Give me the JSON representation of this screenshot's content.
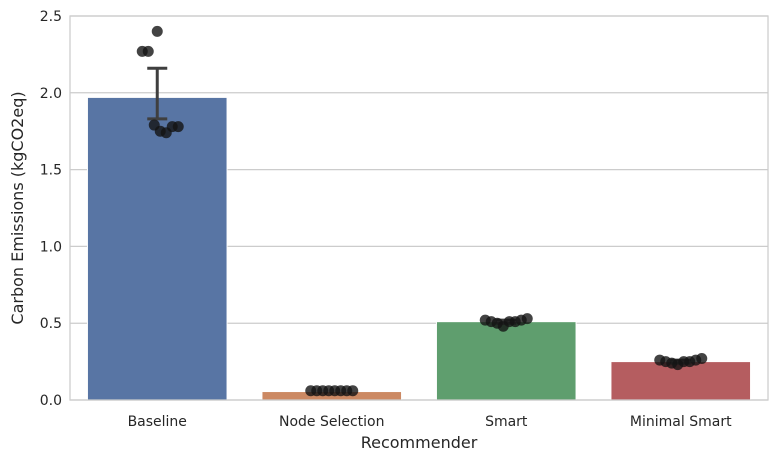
{
  "chart_data": {
    "type": "bar",
    "title": "",
    "xlabel": "Recommender",
    "ylabel": "Carbon Emissions (kgCO2eq)",
    "ylim": [
      0,
      2.5
    ],
    "yticks": [
      "0.0",
      "0.5",
      "1.0",
      "1.5",
      "2.0",
      "2.5"
    ],
    "grid": true,
    "categories": [
      "Baseline",
      "Node Selection",
      "Smart",
      "Minimal Smart"
    ],
    "values": [
      1.97,
      0.055,
      0.51,
      0.25
    ],
    "colors": [
      "#5875a4",
      "#cc8963",
      "#5f9e6e",
      "#b55d60"
    ],
    "error_bars": [
      {
        "low": 1.83,
        "high": 2.16
      },
      null,
      {
        "low": 0.5,
        "high": 0.52
      },
      {
        "low": 0.24,
        "high": 0.26
      }
    ],
    "points": [
      [
        2.4,
        2.27,
        2.27,
        1.79,
        1.75,
        1.74,
        1.78,
        1.78
      ],
      [
        0.06,
        0.06,
        0.06,
        0.06,
        0.06,
        0.06,
        0.06,
        0.06
      ],
      [
        0.52,
        0.51,
        0.5,
        0.48,
        0.51,
        0.51,
        0.52,
        0.53
      ],
      [
        0.26,
        0.25,
        0.24,
        0.23,
        0.25,
        0.25,
        0.26,
        0.27
      ]
    ]
  }
}
